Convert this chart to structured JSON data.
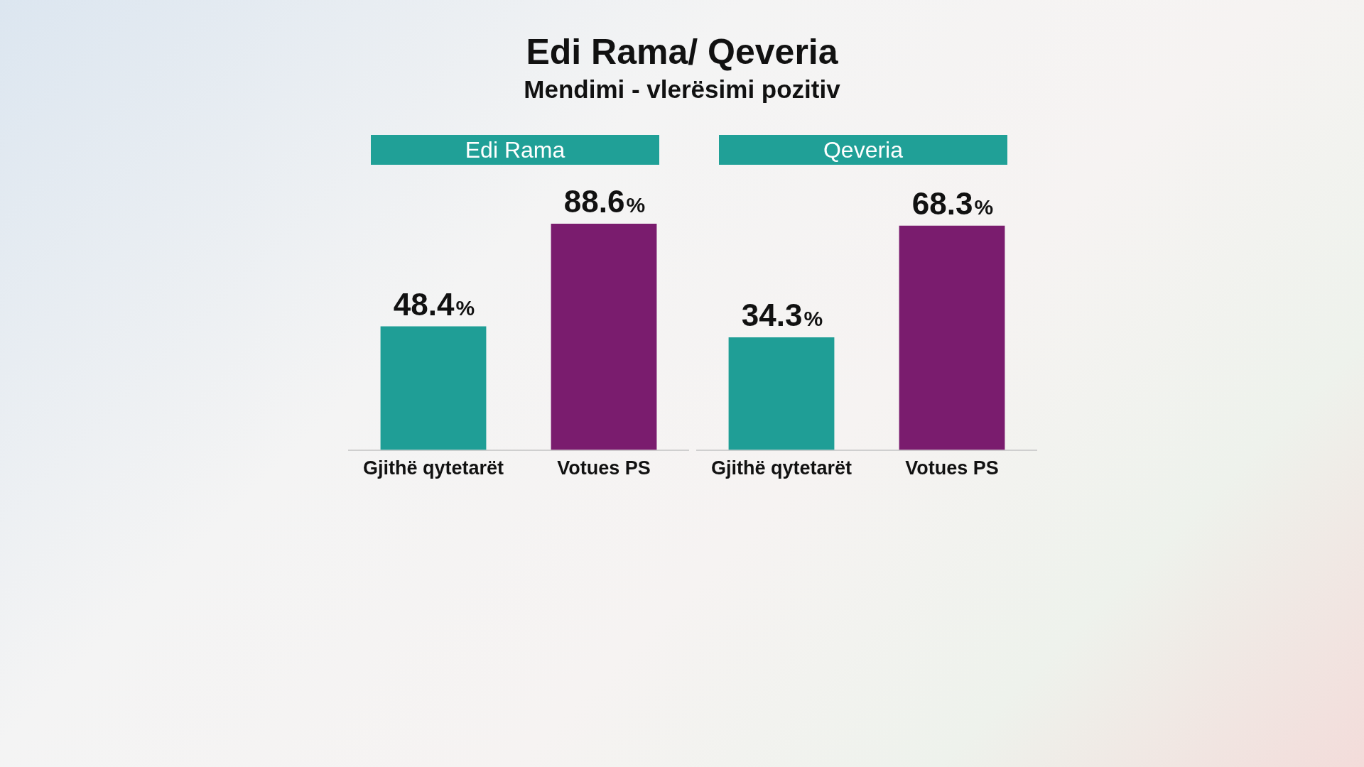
{
  "chart_data": [
    {
      "type": "other",
      "title": "Edi Rama/ Qeveria",
      "subtitle": "Mendimi - vlerësimi pozitiv"
    },
    {
      "type": "bar",
      "title": "Edi Rama",
      "categories": [
        "Gjithë qytetarët",
        "Votues PS"
      ],
      "values": [
        48.4,
        88.6
      ],
      "colors": [
        "#1f9e96",
        "#7a1c6e"
      ],
      "value_labels": [
        "48.4%",
        "88.6%"
      ]
    },
    {
      "type": "bar",
      "title": "Qeveria",
      "categories": [
        "Gjithë qytetarët",
        "Votues PS"
      ],
      "values": [
        34.3,
        68.3
      ],
      "colors": [
        "#1f9e96",
        "#7a1c6e"
      ],
      "value_labels": [
        "34.3%",
        "68.3%"
      ]
    }
  ]
}
